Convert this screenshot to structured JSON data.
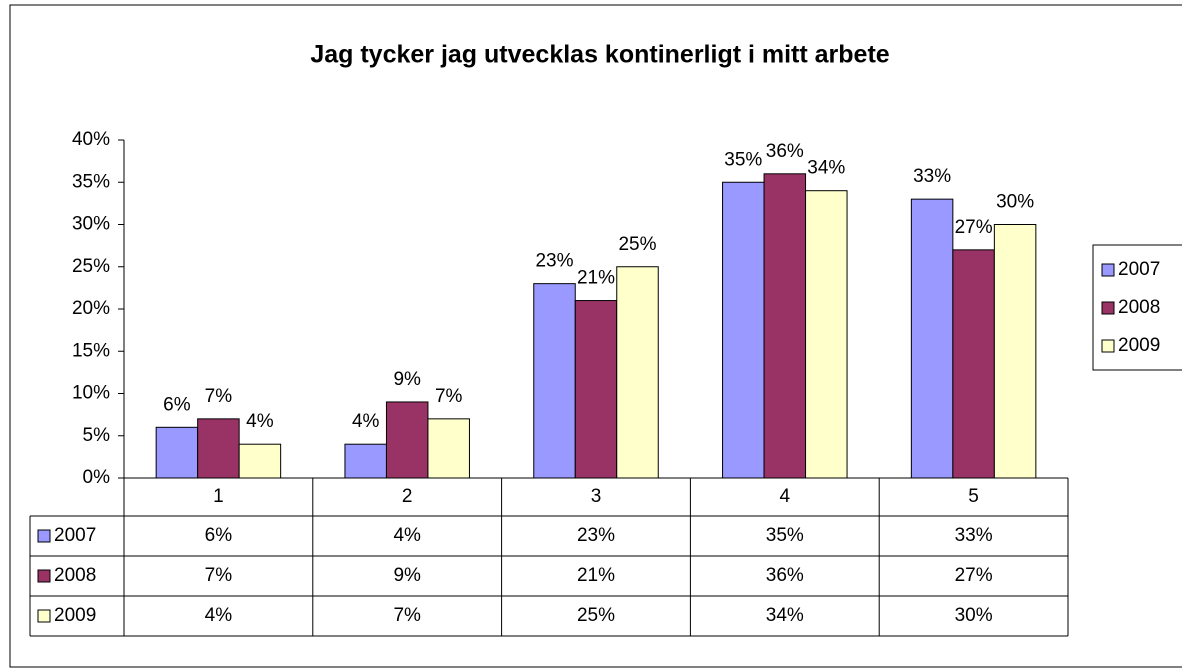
{
  "chart_data": {
    "type": "bar",
    "title": "Jag tycker jag utvecklas kontinerligt i mitt arbete",
    "categories": [
      "1",
      "2",
      "3",
      "4",
      "5"
    ],
    "series": [
      {
        "name": "2007",
        "color": "#9999ff",
        "values": [
          6,
          4,
          23,
          35,
          33
        ],
        "value_labels": [
          "6%",
          "4%",
          "23%",
          "35%",
          "33%"
        ]
      },
      {
        "name": "2008",
        "color": "#993366",
        "values": [
          7,
          9,
          21,
          36,
          27
        ],
        "value_labels": [
          "7%",
          "9%",
          "21%",
          "36%",
          "27%"
        ]
      },
      {
        "name": "2009",
        "color": "#ffffcc",
        "values": [
          4,
          7,
          25,
          34,
          30
        ],
        "value_labels": [
          "4%",
          "7%",
          "25%",
          "34%",
          "30%"
        ]
      }
    ],
    "ylim": [
      0,
      40
    ],
    "yticks": [
      {
        "value": 0,
        "label": "0%"
      },
      {
        "value": 5,
        "label": "5%"
      },
      {
        "value": 10,
        "label": "10%"
      },
      {
        "value": 15,
        "label": "15%"
      },
      {
        "value": 20,
        "label": "20%"
      },
      {
        "value": 25,
        "label": "25%"
      },
      {
        "value": 30,
        "label": "30%"
      },
      {
        "value": 35,
        "label": "35%"
      },
      {
        "value": 40,
        "label": "40%"
      }
    ],
    "grid": false,
    "legend": "right",
    "data_table": true
  }
}
